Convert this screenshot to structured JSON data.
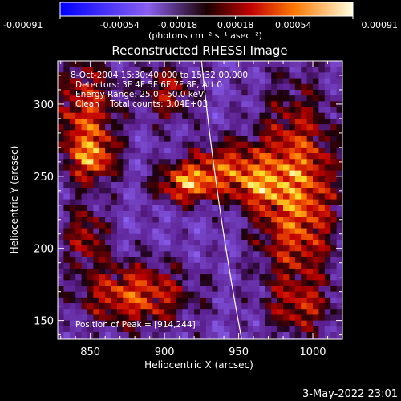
{
  "chart_data": {
    "type": "heatmap",
    "title": "Reconstructed RHESSI Image",
    "xlabel": "Heliocentric X (arcsec)",
    "ylabel": "Heliocentric Y (arcsec)",
    "xlim": [
      828,
      1020
    ],
    "ylim": [
      137,
      330
    ],
    "x_ticks": [
      850,
      900,
      950,
      1000
    ],
    "y_ticks": [
      150,
      200,
      250,
      300
    ],
    "colorbar": {
      "range": [
        -0.00091,
        0.00091
      ],
      "tick_values": [
        -0.00091,
        -0.00054,
        -0.00018,
        0.00018,
        0.00054,
        0.00091
      ],
      "tick_labels": [
        "-0.00091",
        "-0.00054",
        "-0.00018",
        "0.00018",
        "0.00054",
        "0.00091"
      ],
      "unit_label": "(photons cm⁻² s⁻¹ asec⁻²)"
    },
    "annotations": [
      "8-Oct-2004 15:30:40.000 to 15:32:00.000",
      "Detectors: 3F 4F 5F 6F 7F 8F, Att 0",
      "Energy Range: 25.0 - 50.0 keV",
      "Clean    Total counts: 3.04E+03",
      "Position of Peak = [914,244]"
    ],
    "peak": {
      "x": 914,
      "y": 244
    },
    "limb": {
      "x_at_ymax": 925,
      "x_at_ymin": 952
    },
    "hot_regions": [
      {
        "x": 987,
        "y": 240,
        "sx": 18,
        "sy": 45,
        "amp": 0.0009
      },
      {
        "x": 914,
        "y": 247,
        "sx": 14,
        "sy": 9,
        "amp": 0.0009
      },
      {
        "x": 878,
        "y": 170,
        "sx": 25,
        "sy": 15,
        "amp": 0.00075
      },
      {
        "x": 845,
        "y": 292,
        "sx": 14,
        "sy": 28,
        "amp": 0.0007
      },
      {
        "x": 940,
        "y": 260,
        "sx": 18,
        "sy": 12,
        "amp": 0.0006
      },
      {
        "x": 960,
        "y": 245,
        "sx": 12,
        "sy": 10,
        "amp": 0.0006
      },
      {
        "x": 900,
        "y": 310,
        "sx": 12,
        "sy": 14,
        "amp": 0.0005
      },
      {
        "x": 850,
        "y": 265,
        "sx": 10,
        "sy": 10,
        "amp": 0.0006
      },
      {
        "x": 845,
        "y": 210,
        "sx": 10,
        "sy": 14,
        "amp": 0.0005
      },
      {
        "x": 990,
        "y": 160,
        "sx": 15,
        "sy": 12,
        "amp": 0.0004
      }
    ]
  },
  "footer": {
    "timestamp": "3-May-2022 23:01"
  }
}
